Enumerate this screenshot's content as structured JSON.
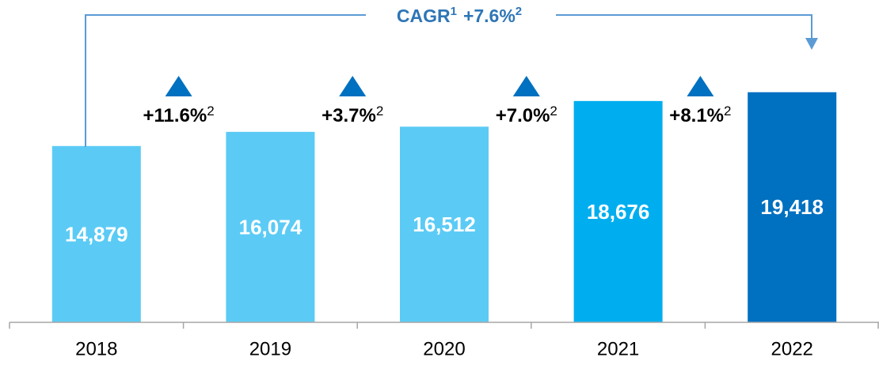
{
  "chart_data": {
    "type": "bar",
    "categories": [
      "2018",
      "2019",
      "2020",
      "2021",
      "2022"
    ],
    "values": [
      14879,
      16074,
      16512,
      18676,
      19418
    ],
    "value_labels": [
      "14,879",
      "16,074",
      "16,512",
      "18,676",
      "19,418"
    ],
    "colors": [
      "#5bcbf5",
      "#5bcbf5",
      "#5bcbf5",
      "#00aeef",
      "#0070c0"
    ],
    "ylim": [
      0,
      27200
    ],
    "growth": [
      {
        "text": "+11.6%",
        "note": "2"
      },
      {
        "text": "+3.7%",
        "note": "2"
      },
      {
        "text": "+7.0%",
        "note": "2"
      },
      {
        "text": "+8.1%",
        "note": "2"
      }
    ],
    "cagr": {
      "label": "CAGR",
      "label_note": "1",
      "text": "+7.6%",
      "text_note": "2"
    }
  }
}
